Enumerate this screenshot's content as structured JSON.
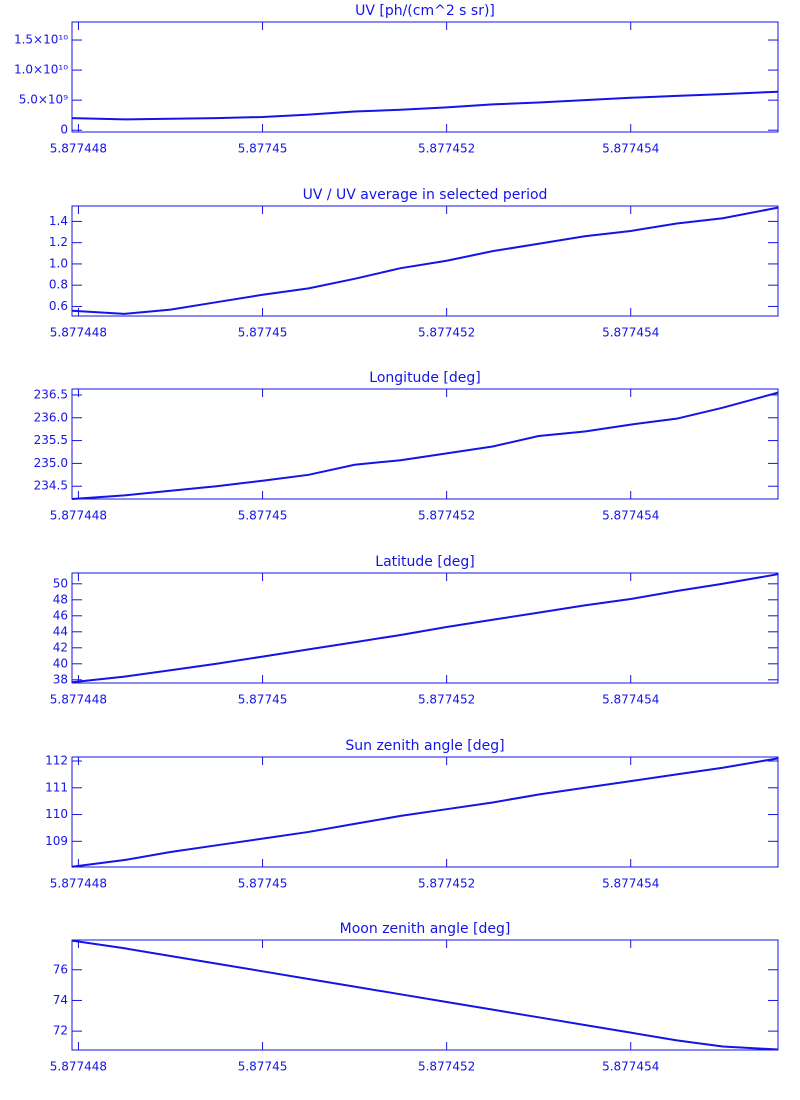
{
  "chart_data": [
    {
      "type": "line",
      "title": "UV [ph/(cm^2 s sr)]",
      "color": "#1414e6",
      "x": [
        5.87744793,
        5.8774485,
        5.877449,
        5.8774495,
        5.87745,
        5.8774505,
        5.877451,
        5.8774515,
        5.877452,
        5.8774525,
        5.877453,
        5.8774535,
        5.877454,
        5.8774545,
        5.877455,
        5.8774556
      ],
      "values": [
        2000000000,
        1800000000,
        1900000000,
        2000000000,
        2200000000,
        2600000000,
        3100000000,
        3400000000,
        3800000000,
        4300000000,
        4600000000,
        5000000000,
        5400000000,
        5700000000,
        6000000000,
        6400000000
      ],
      "xlim": [
        5.87744793,
        5.8774556
      ],
      "xticks": [
        5.877448,
        5.87745,
        5.877452,
        5.877454
      ],
      "ylim": [
        -300000000,
        18000000000
      ],
      "yticks": [
        0,
        {
          "value": 5000000000,
          "label": "5.0×10⁹"
        },
        {
          "value": 10000000000,
          "label": "1.0×10¹⁰"
        },
        {
          "value": 15000000000,
          "label": "1.5×10¹⁰"
        }
      ]
    },
    {
      "type": "line",
      "title": "UV / UV average in selected period",
      "color": "#1414e6",
      "x": [
        5.87744793,
        5.8774485,
        5.877449,
        5.8774495,
        5.87745,
        5.8774505,
        5.877451,
        5.8774515,
        5.877452,
        5.8774525,
        5.877453,
        5.8774535,
        5.877454,
        5.8774545,
        5.877455,
        5.8774556
      ],
      "values": [
        0.56,
        0.53,
        0.57,
        0.64,
        0.71,
        0.77,
        0.86,
        0.96,
        1.03,
        1.12,
        1.19,
        1.26,
        1.31,
        1.38,
        1.43,
        1.53
      ],
      "xlim": [
        5.87744793,
        5.8774556
      ],
      "xticks": [
        5.877448,
        5.87745,
        5.877452,
        5.877454
      ],
      "ylim": [
        0.51,
        1.545
      ],
      "yticks": [
        0.6,
        0.8,
        {
          "value": 1,
          "label": "1.0"
        },
        1.2,
        1.4
      ]
    },
    {
      "type": "line",
      "title": "Longitude [deg]",
      "color": "#1414e6",
      "x": [
        5.87744793,
        5.8774485,
        5.877449,
        5.8774495,
        5.87745,
        5.8774505,
        5.877451,
        5.8774515,
        5.877452,
        5.8774525,
        5.877453,
        5.8774535,
        5.877454,
        5.8774545,
        5.877455,
        5.8774556
      ],
      "values": [
        234.22,
        234.3,
        234.4,
        234.5,
        234.62,
        234.75,
        234.97,
        235.07,
        235.22,
        235.37,
        235.6,
        235.7,
        235.85,
        235.98,
        236.22,
        236.55
      ],
      "xlim": [
        5.87744793,
        5.8774556
      ],
      "xticks": [
        5.877448,
        5.87745,
        5.877452,
        5.877454
      ],
      "ylim": [
        234.22,
        236.63
      ],
      "yticks": [
        234.5,
        {
          "value": 235,
          "label": "235.0"
        },
        235.5,
        {
          "value": 236,
          "label": "236.0"
        },
        236.5
      ]
    },
    {
      "type": "line",
      "title": "Latitude [deg]",
      "color": "#1414e6",
      "x": [
        5.87744793,
        5.8774485,
        5.877449,
        5.8774495,
        5.87745,
        5.8774505,
        5.877451,
        5.8774515,
        5.877452,
        5.8774525,
        5.877453,
        5.8774535,
        5.877454,
        5.8774545,
        5.877455,
        5.8774556
      ],
      "values": [
        37.7,
        38.4,
        39.2,
        40.0,
        40.9,
        41.8,
        42.7,
        43.6,
        44.6,
        45.5,
        46.4,
        47.3,
        48.1,
        49.1,
        50.0,
        51.2
      ],
      "xlim": [
        5.87744793,
        5.8774556
      ],
      "xticks": [
        5.877448,
        5.87745,
        5.877452,
        5.877454
      ],
      "ylim": [
        37.6,
        51.35
      ],
      "yticks": [
        38,
        40,
        42,
        44,
        46,
        48,
        50
      ]
    },
    {
      "type": "line",
      "title": "Sun zenith angle [deg]",
      "color": "#1414e6",
      "x": [
        5.87744793,
        5.8774485,
        5.877449,
        5.8774495,
        5.87745,
        5.8774505,
        5.877451,
        5.8774515,
        5.877452,
        5.8774525,
        5.877453,
        5.8774535,
        5.877454,
        5.8774545,
        5.877455,
        5.8774556
      ],
      "values": [
        108.05,
        108.3,
        108.6,
        108.85,
        109.1,
        109.35,
        109.65,
        109.95,
        110.2,
        110.45,
        110.75,
        111.0,
        111.25,
        111.5,
        111.75,
        112.1
      ],
      "xlim": [
        5.87744793,
        5.8774556
      ],
      "xticks": [
        5.877448,
        5.87745,
        5.877452,
        5.877454
      ],
      "ylim": [
        108.04,
        112.15
      ],
      "yticks": [
        109,
        110,
        111,
        112
      ]
    },
    {
      "type": "line",
      "title": "Moon zenith angle [deg]",
      "color": "#1414e6",
      "x": [
        5.87744793,
        5.8774485,
        5.877449,
        5.8774495,
        5.87745,
        5.8774505,
        5.877451,
        5.8774515,
        5.877452,
        5.8774525,
        5.877453,
        5.8774535,
        5.877454,
        5.8774545,
        5.877455,
        5.8774556
      ],
      "values": [
        77.9,
        77.4,
        76.9,
        76.4,
        75.9,
        75.4,
        74.9,
        74.4,
        73.9,
        73.4,
        72.9,
        72.4,
        71.9,
        71.4,
        71.0,
        70.8
      ],
      "xlim": [
        5.87744793,
        5.8774556
      ],
      "xticks": [
        5.877448,
        5.87745,
        5.877452,
        5.877454
      ],
      "ylim": [
        70.77,
        77.94
      ],
      "yticks": [
        72,
        74,
        76
      ]
    }
  ]
}
